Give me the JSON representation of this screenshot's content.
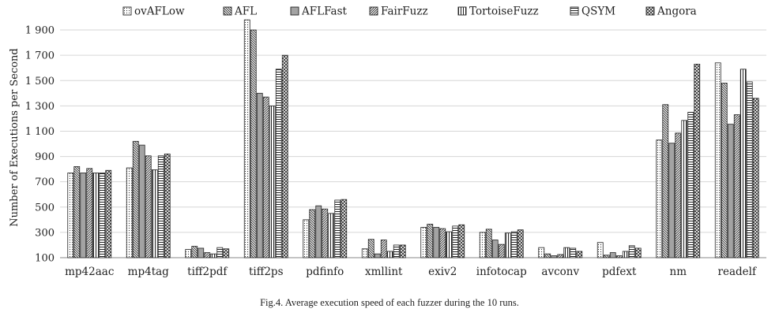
{
  "caption": "Fig.4.   Average execution speed of each fuzzer during the 10 runs.",
  "chart_data": {
    "type": "bar",
    "title": "",
    "xlabel": "",
    "ylabel": "Number of Executions per Second",
    "ylim": [
      100,
      2000
    ],
    "yticks": [
      100,
      300,
      500,
      700,
      900,
      1100,
      1300,
      1500,
      1700,
      1900
    ],
    "ytick_labels": [
      "100",
      "300",
      "500",
      "700",
      "900",
      "1 100",
      "1 300",
      "1 500",
      "1 700",
      "1 900"
    ],
    "grid": "horizontal",
    "legend_position": "top",
    "categories": [
      "mp42aac",
      "mp4tag",
      "tiff2pdf",
      "tiff2ps",
      "pdfinfo",
      "xmllint",
      "exiv2",
      "infotocap",
      "avconv",
      "pdfext",
      "nm",
      "readelf"
    ],
    "series": [
      {
        "name": "ovAFLow",
        "pattern": "dots",
        "values": [
          770,
          810,
          165,
          1980,
          400,
          170,
          340,
          300,
          180,
          220,
          1030,
          1640
        ]
      },
      {
        "name": "AFL",
        "pattern": "diag-back",
        "values": [
          820,
          1020,
          190,
          1900,
          480,
          245,
          365,
          325,
          130,
          120,
          1310,
          1480
        ]
      },
      {
        "name": "AFLFast",
        "pattern": "solid-gray",
        "values": [
          770,
          990,
          175,
          1400,
          510,
          130,
          340,
          240,
          115,
          140,
          1005,
          1155
        ]
      },
      {
        "name": "FairFuzz",
        "pattern": "diag-fwd",
        "values": [
          805,
          905,
          140,
          1370,
          485,
          240,
          330,
          205,
          125,
          115,
          1085,
          1230
        ]
      },
      {
        "name": "TortoiseFuzz",
        "pattern": "vertical",
        "values": [
          770,
          795,
          130,
          1300,
          450,
          150,
          305,
          295,
          180,
          150,
          1185,
          1590
        ]
      },
      {
        "name": "QSYM",
        "pattern": "horizontal",
        "values": [
          770,
          905,
          180,
          1590,
          555,
          200,
          350,
          305,
          175,
          195,
          1250,
          1490
        ]
      },
      {
        "name": "Angora",
        "pattern": "cross",
        "values": [
          790,
          920,
          170,
          1700,
          560,
          200,
          360,
          320,
          150,
          175,
          1630,
          1360
        ]
      }
    ]
  }
}
